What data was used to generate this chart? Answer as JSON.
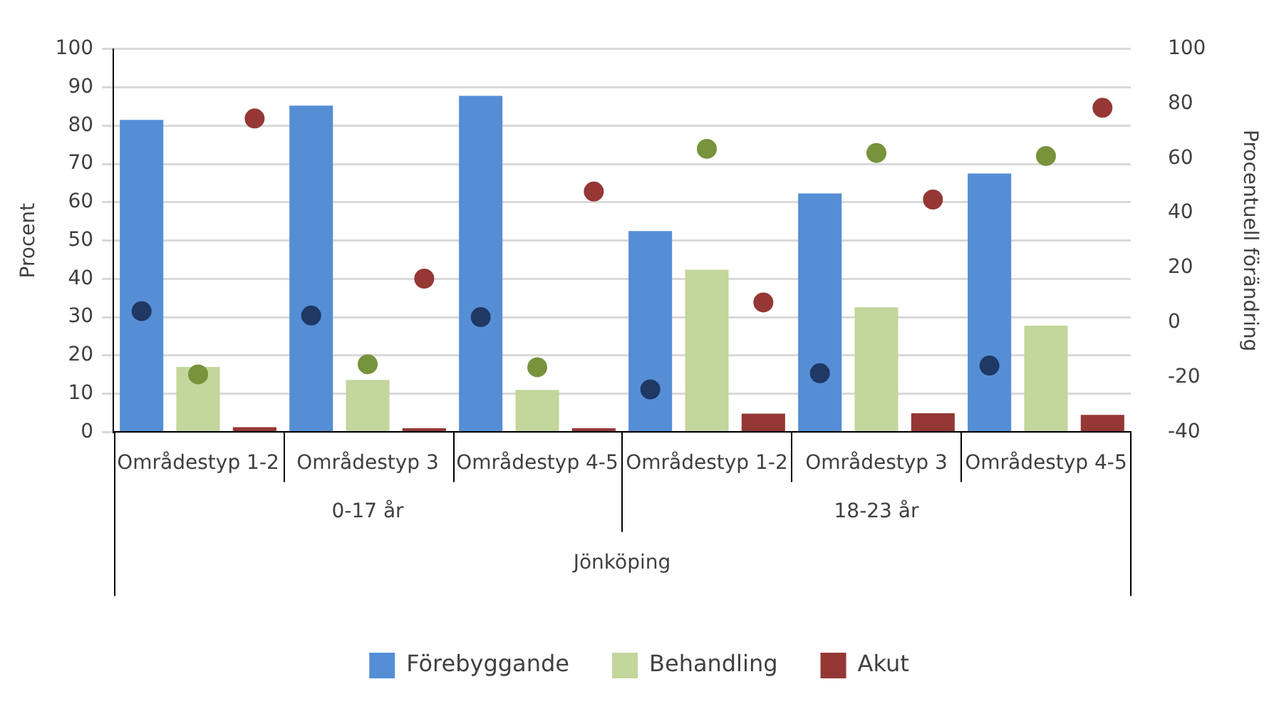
{
  "chart_data": {
    "type": "bar",
    "categories": [
      "Områdestyp 1-2",
      "Områdestyp 3",
      "Områdestyp 4-5",
      "Områdestyp 1-2",
      "Områdestyp 3",
      "Områdestyp 4-5"
    ],
    "ylabel": "Procent",
    "y2label": "Procentuell förändring",
    "ylim": [
      0,
      100
    ],
    "yticks": [
      0,
      10,
      20,
      30,
      40,
      50,
      60,
      70,
      80,
      90,
      100
    ],
    "y2lim": [
      -40,
      100
    ],
    "y2ticks": [
      -40,
      -20,
      0,
      20,
      40,
      60,
      80,
      100
    ],
    "grid": "y",
    "legend": "bottom",
    "annotations": [
      "0-17 år",
      "18-23 år",
      "Jönköping"
    ],
    "series": [
      {
        "name": "Förebyggande",
        "color": "#558ed5",
        "values": [
          81.5,
          85.2,
          87.8,
          52.5,
          62.3,
          67.5
        ]
      },
      {
        "name": "Behandling",
        "color": "#c3d69b",
        "values": [
          17,
          13.6,
          11,
          42.4,
          32.6,
          27.8
        ]
      },
      {
        "name": "Akut",
        "color": "#953735",
        "values": [
          1.3,
          1.0,
          1.0,
          4.8,
          4.9,
          4.5
        ]
      },
      {
        "type": "scatter",
        "axis": "y2",
        "color": "#1f3864",
        "values": [
          4.2,
          2.6,
          2.0,
          -24.4,
          -18.5,
          -15.7
        ]
      },
      {
        "type": "scatter",
        "axis": "y2",
        "color": "#77933c",
        "values": [
          -18.9,
          -15.2,
          -16.3,
          63.5,
          62.0,
          60.9
        ]
      },
      {
        "type": "scatter",
        "axis": "y2",
        "color": "#953735",
        "values": [
          74.6,
          16.1,
          47.9,
          7.4,
          45.0,
          78.5
        ]
      }
    ]
  }
}
